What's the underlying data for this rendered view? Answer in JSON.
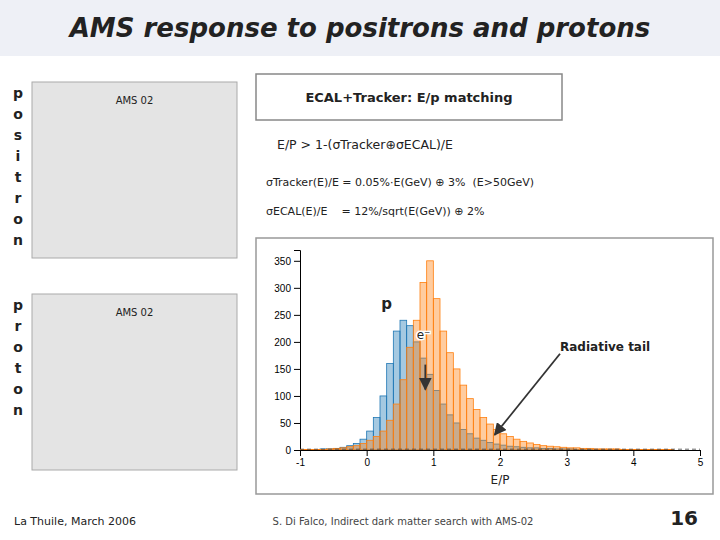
{
  "chart_data": {
    "type": "histogram",
    "title": "AMS response to positrons and protons",
    "xlabel": "E/P",
    "xlim": [
      -1,
      5
    ],
    "ylim": [
      0,
      370
    ],
    "xticks": [
      -1,
      0,
      1,
      2,
      3,
      4,
      5
    ],
    "yticks": [
      0,
      50,
      100,
      150,
      200,
      250,
      300,
      350
    ],
    "bins": [
      -1.0,
      -0.9,
      -0.8,
      -0.7,
      -0.6,
      -0.5,
      -0.4,
      -0.3,
      -0.2,
      -0.1,
      0.0,
      0.1,
      0.2,
      0.3,
      0.4,
      0.5,
      0.6,
      0.7,
      0.8,
      0.9,
      1.0,
      1.1,
      1.2,
      1.3,
      1.4,
      1.5,
      1.6,
      1.7,
      1.8,
      1.9,
      2.0,
      2.1,
      2.2,
      2.3,
      2.4,
      2.5,
      2.6,
      2.7,
      2.8,
      2.9,
      3.0,
      3.1,
      3.2,
      3.3,
      3.4,
      3.5,
      3.6,
      3.7,
      3.8,
      3.9,
      4.0,
      4.1,
      4.2,
      4.3,
      4.4,
      4.5,
      4.6,
      4.7,
      4.8,
      4.9,
      5.0
    ],
    "series": [
      {
        "values": [
          1,
          1,
          1,
          2,
          2,
          3,
          5,
          8,
          12,
          20,
          35,
          60,
          100,
          160,
          220,
          240,
          230,
          200,
          170,
          140,
          110,
          85,
          65,
          50,
          38,
          30,
          22,
          18,
          14,
          11,
          9,
          7,
          6,
          5,
          4,
          4,
          3,
          3,
          2,
          2,
          2,
          1,
          1,
          1,
          1,
          1,
          1,
          1,
          1,
          1,
          1,
          1,
          0,
          1,
          0,
          1,
          0,
          0,
          0,
          0
        ]
      },
      {
        "values": [
          1,
          1,
          1,
          1,
          2,
          3,
          4,
          6,
          8,
          12,
          18,
          25,
          35,
          55,
          85,
          130,
          190,
          240,
          310,
          350,
          280,
          220,
          180,
          150,
          120,
          95,
          75,
          60,
          48,
          38,
          30,
          25,
          20,
          16,
          13,
          10,
          8,
          7,
          6,
          5,
          4,
          4,
          3,
          3,
          2,
          2,
          2,
          2,
          1,
          1,
          1,
          1,
          1,
          1,
          1,
          1,
          0,
          0,
          0,
          0
        ]
      }
    ],
    "baseline": 1.5,
    "annotations": [
      {
        "text": "p",
        "x": 0.22,
        "y": 255
      },
      {
        "text": "e⁻",
        "x": 0.75,
        "y": 200,
        "arrow": {
          "from": [
            0.88,
            158
          ],
          "to": [
            0.88,
            112
          ]
        }
      },
      {
        "text": "Radiative tail",
        "x": 2.9,
        "y": 178,
        "arrow": {
          "from": [
            2.9,
            178
          ],
          "to": [
            1.92,
            28
          ]
        }
      }
    ],
    "side_labels": [
      "positron",
      "proton"
    ],
    "image_labels": [
      "AMS 02",
      "AMS 02"
    ],
    "box_text": "ECAL+Tracker: E/p matching",
    "formulas": [
      "E/P > 1-(σTracker⊕σECAL)/E",
      "σTracker(E)/E = 0.05%·E(GeV) ⊕ 3%  (E>50GeV)",
      "σECAL(E)/E    = 12%/sqrt(E(GeV)) ⊕ 2%"
    ],
    "footer": [
      "La Thuile, March 2006",
      "S. Di Falco, Indirect dark matter search with AMS-02",
      "16"
    ]
  }
}
